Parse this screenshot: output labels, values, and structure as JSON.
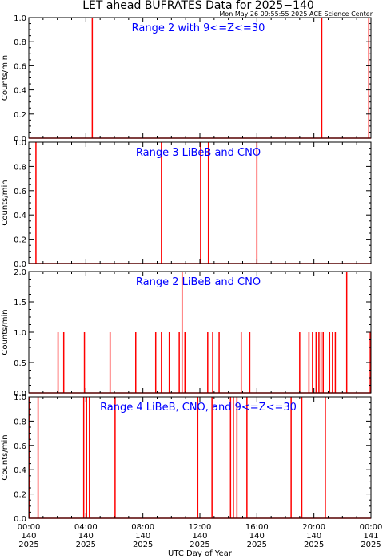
{
  "title": "LET ahead BUFRATES Data for 2025−140",
  "timestamp": "Mon May 26 09:55:55 2025 ACE Science Center",
  "xlabel": "UTC Day of Year",
  "colors": {
    "trace": "#ff0000",
    "label": "#0000ff",
    "axes": "#000000"
  },
  "chart_data": [
    {
      "type": "line",
      "label": "Range 2 with 9<=Z<=30",
      "ylabel": "Counts/min",
      "ylim": [
        0,
        1
      ],
      "yticks": [
        "0.0",
        "0.2",
        "0.4",
        "0.6",
        "0.8",
        "1.0"
      ],
      "xlim": [
        0,
        24
      ],
      "spikes": [
        {
          "x": 4.45,
          "y": 1
        },
        {
          "x": 20.55,
          "y": 1
        },
        {
          "x": 23.85,
          "y": 1
        }
      ]
    },
    {
      "type": "line",
      "label": "Range 3 LiBeB and CNO",
      "ylabel": "Counts/min",
      "ylim": [
        0,
        1
      ],
      "yticks": [
        "0.0",
        "0.2",
        "0.4",
        "0.6",
        "0.8",
        "1.0"
      ],
      "xlim": [
        0,
        24
      ],
      "spikes": [
        {
          "x": 0.5,
          "y": 1
        },
        {
          "x": 9.3,
          "y": 1
        },
        {
          "x": 12.05,
          "y": 1
        },
        {
          "x": 12.6,
          "y": 1
        },
        {
          "x": 16.0,
          "y": 1
        }
      ]
    },
    {
      "type": "line",
      "label": "Range 2 LiBeB and CNO",
      "ylabel": "Counts/min",
      "ylim": [
        0,
        2
      ],
      "yticks": [
        "0.0",
        "0.5",
        "1.0",
        "1.5",
        "2.0"
      ],
      "xlim": [
        0,
        24
      ],
      "spikes": [
        {
          "x": 2.05,
          "y": 1
        },
        {
          "x": 2.45,
          "y": 1
        },
        {
          "x": 3.9,
          "y": 1
        },
        {
          "x": 5.7,
          "y": 1
        },
        {
          "x": 7.5,
          "y": 1
        },
        {
          "x": 8.9,
          "y": 1
        },
        {
          "x": 9.3,
          "y": 1
        },
        {
          "x": 9.85,
          "y": 1
        },
        {
          "x": 10.55,
          "y": 1
        },
        {
          "x": 10.75,
          "y": 2
        },
        {
          "x": 10.95,
          "y": 1
        },
        {
          "x": 12.55,
          "y": 1
        },
        {
          "x": 12.9,
          "y": 1
        },
        {
          "x": 13.35,
          "y": 1
        },
        {
          "x": 14.9,
          "y": 1
        },
        {
          "x": 15.5,
          "y": 1
        },
        {
          "x": 19.0,
          "y": 1
        },
        {
          "x": 19.65,
          "y": 1
        },
        {
          "x": 19.9,
          "y": 1
        },
        {
          "x": 20.15,
          "y": 1
        },
        {
          "x": 20.35,
          "y": 1
        },
        {
          "x": 20.5,
          "y": 1
        },
        {
          "x": 20.65,
          "y": 1
        },
        {
          "x": 21.1,
          "y": 1
        },
        {
          "x": 21.3,
          "y": 1
        },
        {
          "x": 21.5,
          "y": 1
        },
        {
          "x": 22.3,
          "y": 2
        },
        {
          "x": 23.95,
          "y": 1
        }
      ]
    },
    {
      "type": "line",
      "label": "Range 4 LiBeB, CNO, and 9<=Z<=30",
      "ylabel": "Counts/min",
      "ylim": [
        0,
        1
      ],
      "yticks": [
        "0.0",
        "0.2",
        "0.4",
        "0.6",
        "0.8",
        "1.0"
      ],
      "xlim": [
        0,
        24
      ],
      "spikes": [
        {
          "x": 0.05,
          "y": 1
        },
        {
          "x": 0.65,
          "y": 1
        },
        {
          "x": 3.85,
          "y": 1
        },
        {
          "x": 4.05,
          "y": 1
        },
        {
          "x": 4.25,
          "y": 1
        },
        {
          "x": 6.05,
          "y": 1
        },
        {
          "x": 11.85,
          "y": 1
        },
        {
          "x": 12.85,
          "y": 1
        },
        {
          "x": 14.15,
          "y": 1
        },
        {
          "x": 14.35,
          "y": 1
        },
        {
          "x": 14.6,
          "y": 1
        },
        {
          "x": 15.3,
          "y": 1
        },
        {
          "x": 18.4,
          "y": 1
        },
        {
          "x": 19.15,
          "y": 1
        },
        {
          "x": 20.8,
          "y": 1
        }
      ]
    }
  ],
  "xticks": [
    {
      "time": "00:00",
      "day": "140",
      "year": "2025"
    },
    {
      "time": "04:00",
      "day": "140",
      "year": "2025"
    },
    {
      "time": "08:00",
      "day": "140",
      "year": "2025"
    },
    {
      "time": "12:00",
      "day": "140",
      "year": "2025"
    },
    {
      "time": "16:00",
      "day": "140",
      "year": "2025"
    },
    {
      "time": "20:00",
      "day": "140",
      "year": "2025"
    },
    {
      "time": "00:00",
      "day": "141",
      "year": "2025"
    }
  ]
}
